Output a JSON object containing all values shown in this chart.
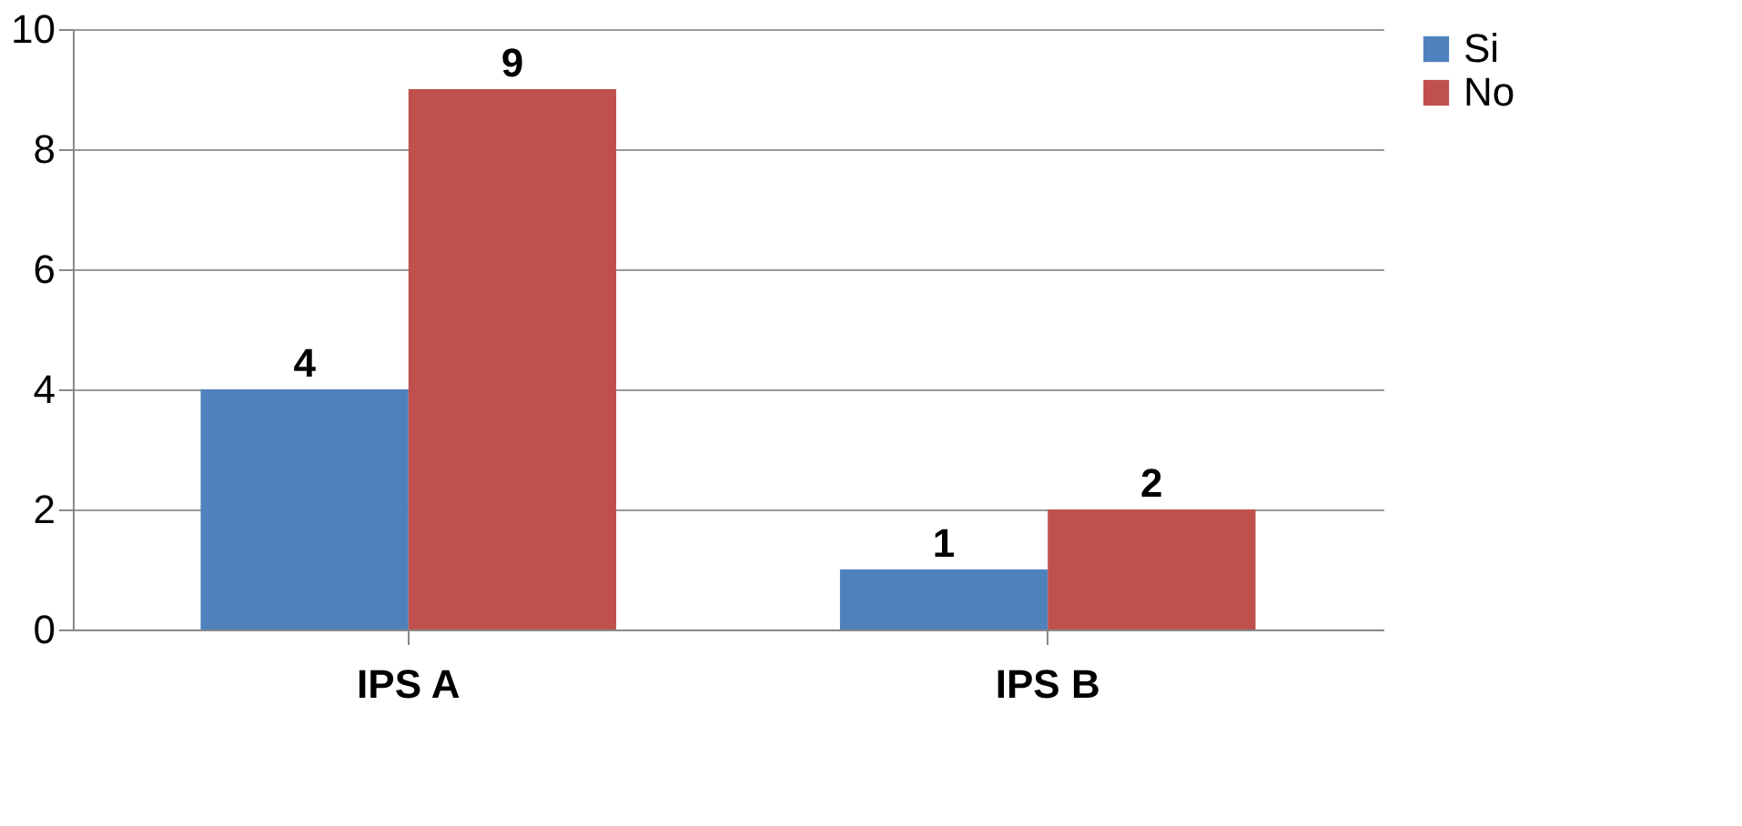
{
  "chart_data": {
    "type": "bar",
    "categories": [
      "IPS A",
      "IPS B"
    ],
    "series": [
      {
        "name": "Si",
        "color": "#4f81bd",
        "values": [
          4,
          1
        ]
      },
      {
        "name": "No",
        "color": "#c0504d",
        "values": [
          9,
          2
        ]
      }
    ],
    "ylim": [
      0,
      10
    ],
    "yticks": [
      0,
      2,
      4,
      6,
      8,
      10
    ],
    "grid": "y",
    "legend": "right",
    "data_labels": true
  }
}
